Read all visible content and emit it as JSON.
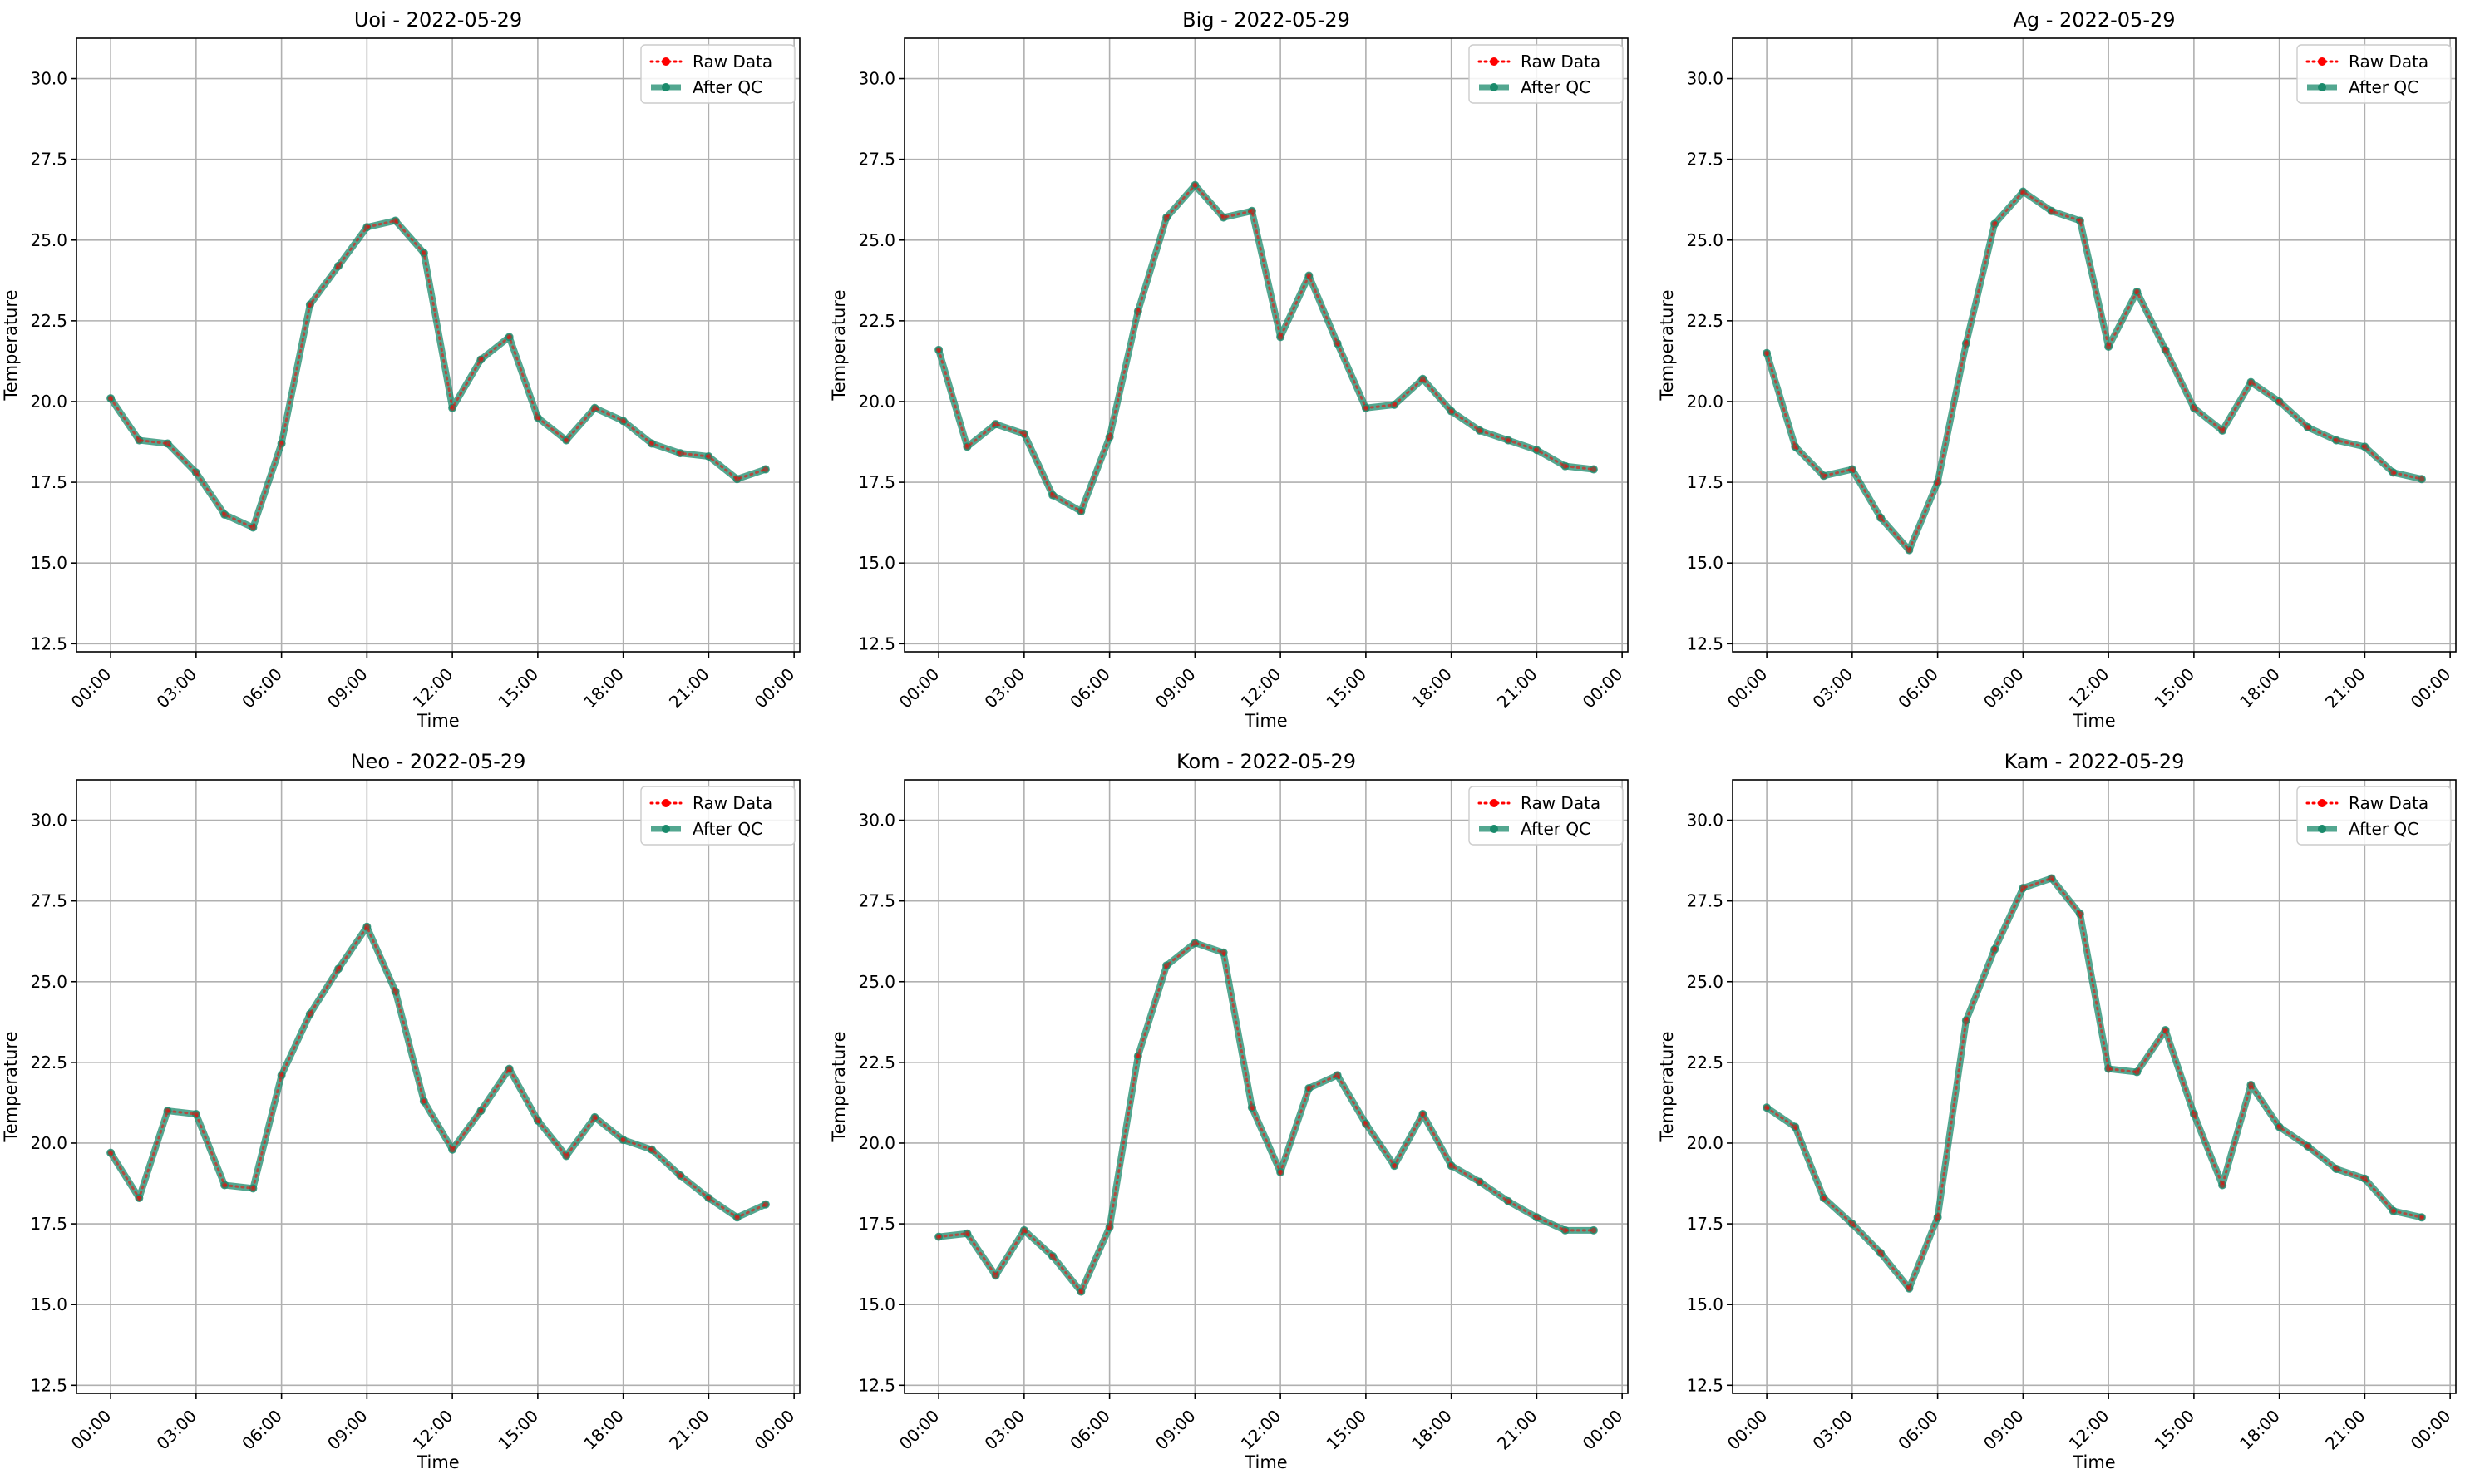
{
  "figure": {
    "background": "#ffffff"
  },
  "colors": {
    "raw": "#ff0000",
    "qc": "#1a8a6b",
    "grid": "#b0b0b0",
    "axis": "#000000"
  },
  "chart_data": [
    {
      "type": "line",
      "title": "Uoi - 2022-05-29",
      "xlabel": "Time",
      "ylabel": "Temperature",
      "xlim_hours": [
        -1.2,
        24.2
      ],
      "ylim": [
        12.25,
        31.25
      ],
      "x_ticks": [
        0,
        3,
        6,
        9,
        12,
        15,
        18,
        21,
        24
      ],
      "x_tick_labels": [
        "00:00",
        "03:00",
        "06:00",
        "09:00",
        "12:00",
        "15:00",
        "18:00",
        "21:00",
        "00:00"
      ],
      "y_ticks": [
        12.5,
        15.0,
        17.5,
        20.0,
        22.5,
        25.0,
        27.5,
        30.0
      ],
      "y_tick_labels": [
        "12.5",
        "15.0",
        "17.5",
        "20.0",
        "22.5",
        "25.0",
        "27.5",
        "30.0"
      ],
      "grid": true,
      "legend_position": "top-right",
      "x": [
        "00:00",
        "01:00",
        "02:00",
        "03:00",
        "04:00",
        "05:00",
        "06:00",
        "07:00",
        "08:00",
        "09:00",
        "10:00",
        "11:00",
        "12:00",
        "13:00",
        "14:00",
        "15:00",
        "16:00",
        "17:00",
        "18:00",
        "19:00",
        "20:00",
        "21:00",
        "22:00",
        "23:00"
      ],
      "series": [
        {
          "name": "Raw Data",
          "values": [
            20.1,
            18.8,
            18.7,
            17.8,
            16.5,
            16.1,
            18.7,
            23.0,
            24.2,
            25.4,
            25.6,
            24.6,
            19.8,
            21.3,
            22.0,
            19.5,
            18.8,
            19.8,
            19.4,
            18.7,
            18.4,
            18.3,
            17.6,
            17.9
          ]
        },
        {
          "name": "After QC",
          "values": [
            20.1,
            18.8,
            18.7,
            17.8,
            16.5,
            16.1,
            18.7,
            23.0,
            24.2,
            25.4,
            25.6,
            24.6,
            19.8,
            21.3,
            22.0,
            19.5,
            18.8,
            19.8,
            19.4,
            18.7,
            18.4,
            18.3,
            17.6,
            17.9
          ]
        }
      ]
    },
    {
      "type": "line",
      "title": "Big - 2022-05-29",
      "xlabel": "Time",
      "ylabel": "Temperature",
      "xlim_hours": [
        -1.2,
        24.2
      ],
      "ylim": [
        12.25,
        31.25
      ],
      "x_ticks": [
        0,
        3,
        6,
        9,
        12,
        15,
        18,
        21,
        24
      ],
      "x_tick_labels": [
        "00:00",
        "03:00",
        "06:00",
        "09:00",
        "12:00",
        "15:00",
        "18:00",
        "21:00",
        "00:00"
      ],
      "y_ticks": [
        12.5,
        15.0,
        17.5,
        20.0,
        22.5,
        25.0,
        27.5,
        30.0
      ],
      "y_tick_labels": [
        "12.5",
        "15.0",
        "17.5",
        "20.0",
        "22.5",
        "25.0",
        "27.5",
        "30.0"
      ],
      "grid": true,
      "legend_position": "top-right",
      "x": [
        "00:00",
        "01:00",
        "02:00",
        "03:00",
        "04:00",
        "05:00",
        "06:00",
        "07:00",
        "08:00",
        "09:00",
        "10:00",
        "11:00",
        "12:00",
        "13:00",
        "14:00",
        "15:00",
        "16:00",
        "17:00",
        "18:00",
        "19:00",
        "20:00",
        "21:00",
        "22:00",
        "23:00"
      ],
      "series": [
        {
          "name": "Raw Data",
          "values": [
            21.6,
            18.6,
            19.3,
            19.0,
            17.1,
            16.6,
            18.9,
            22.8,
            25.7,
            26.7,
            25.7,
            25.9,
            22.0,
            23.9,
            21.8,
            19.8,
            19.9,
            20.7,
            19.7,
            19.1,
            18.8,
            18.5,
            18.0,
            17.9
          ]
        },
        {
          "name": "After QC",
          "values": [
            21.6,
            18.6,
            19.3,
            19.0,
            17.1,
            16.6,
            18.9,
            22.8,
            25.7,
            26.7,
            25.7,
            25.9,
            22.0,
            23.9,
            21.8,
            19.8,
            19.9,
            20.7,
            19.7,
            19.1,
            18.8,
            18.5,
            18.0,
            17.9
          ]
        }
      ]
    },
    {
      "type": "line",
      "title": "Ag - 2022-05-29",
      "xlabel": "Time",
      "ylabel": "Temperature",
      "xlim_hours": [
        -1.2,
        24.2
      ],
      "ylim": [
        12.25,
        31.25
      ],
      "x_ticks": [
        0,
        3,
        6,
        9,
        12,
        15,
        18,
        21,
        24
      ],
      "x_tick_labels": [
        "00:00",
        "03:00",
        "06:00",
        "09:00",
        "12:00",
        "15:00",
        "18:00",
        "21:00",
        "00:00"
      ],
      "y_ticks": [
        12.5,
        15.0,
        17.5,
        20.0,
        22.5,
        25.0,
        27.5,
        30.0
      ],
      "y_tick_labels": [
        "12.5",
        "15.0",
        "17.5",
        "20.0",
        "22.5",
        "25.0",
        "27.5",
        "30.0"
      ],
      "grid": true,
      "legend_position": "top-right",
      "x": [
        "00:00",
        "01:00",
        "02:00",
        "03:00",
        "04:00",
        "05:00",
        "06:00",
        "07:00",
        "08:00",
        "09:00",
        "10:00",
        "11:00",
        "12:00",
        "13:00",
        "14:00",
        "15:00",
        "16:00",
        "17:00",
        "18:00",
        "19:00",
        "20:00",
        "21:00",
        "22:00",
        "23:00"
      ],
      "series": [
        {
          "name": "Raw Data",
          "values": [
            21.5,
            18.6,
            17.7,
            17.9,
            16.4,
            15.4,
            17.5,
            21.8,
            25.5,
            26.5,
            25.9,
            25.6,
            21.7,
            23.4,
            21.6,
            19.8,
            19.1,
            20.6,
            20.0,
            19.2,
            18.8,
            18.6,
            17.8,
            17.6
          ]
        },
        {
          "name": "After QC",
          "values": [
            21.5,
            18.6,
            17.7,
            17.9,
            16.4,
            15.4,
            17.5,
            21.8,
            25.5,
            26.5,
            25.9,
            25.6,
            21.7,
            23.4,
            21.6,
            19.8,
            19.1,
            20.6,
            20.0,
            19.2,
            18.8,
            18.6,
            17.8,
            17.6
          ]
        }
      ]
    },
    {
      "type": "line",
      "title": "Neo - 2022-05-29",
      "xlabel": "Time",
      "ylabel": "Temperature",
      "xlim_hours": [
        -1.2,
        24.2
      ],
      "ylim": [
        12.25,
        31.25
      ],
      "x_ticks": [
        0,
        3,
        6,
        9,
        12,
        15,
        18,
        21,
        24
      ],
      "x_tick_labels": [
        "00:00",
        "03:00",
        "06:00",
        "09:00",
        "12:00",
        "15:00",
        "18:00",
        "21:00",
        "00:00"
      ],
      "y_ticks": [
        12.5,
        15.0,
        17.5,
        20.0,
        22.5,
        25.0,
        27.5,
        30.0
      ],
      "y_tick_labels": [
        "12.5",
        "15.0",
        "17.5",
        "20.0",
        "22.5",
        "25.0",
        "27.5",
        "30.0"
      ],
      "grid": true,
      "legend_position": "top-right",
      "x": [
        "00:00",
        "01:00",
        "02:00",
        "03:00",
        "04:00",
        "05:00",
        "06:00",
        "07:00",
        "08:00",
        "09:00",
        "10:00",
        "11:00",
        "12:00",
        "13:00",
        "14:00",
        "15:00",
        "16:00",
        "17:00",
        "18:00",
        "19:00",
        "20:00",
        "21:00",
        "22:00",
        "23:00"
      ],
      "series": [
        {
          "name": "Raw Data",
          "values": [
            19.7,
            18.3,
            21.0,
            20.9,
            18.7,
            18.6,
            22.1,
            24.0,
            25.4,
            26.7,
            24.7,
            21.3,
            19.8,
            21.0,
            22.3,
            20.7,
            19.6,
            20.8,
            20.1,
            19.8,
            19.0,
            18.3,
            17.7,
            18.1
          ]
        },
        {
          "name": "After QC",
          "values": [
            19.7,
            18.3,
            21.0,
            20.9,
            18.7,
            18.6,
            22.1,
            24.0,
            25.4,
            26.7,
            24.7,
            21.3,
            19.8,
            21.0,
            22.3,
            20.7,
            19.6,
            20.8,
            20.1,
            19.8,
            19.0,
            18.3,
            17.7,
            18.1
          ]
        }
      ]
    },
    {
      "type": "line",
      "title": "Kom - 2022-05-29",
      "xlabel": "Time",
      "ylabel": "Temperature",
      "xlim_hours": [
        -1.2,
        24.2
      ],
      "ylim": [
        12.25,
        31.25
      ],
      "x_ticks": [
        0,
        3,
        6,
        9,
        12,
        15,
        18,
        21,
        24
      ],
      "x_tick_labels": [
        "00:00",
        "03:00",
        "06:00",
        "09:00",
        "12:00",
        "15:00",
        "18:00",
        "21:00",
        "00:00"
      ],
      "y_ticks": [
        12.5,
        15.0,
        17.5,
        20.0,
        22.5,
        25.0,
        27.5,
        30.0
      ],
      "y_tick_labels": [
        "12.5",
        "15.0",
        "17.5",
        "20.0",
        "22.5",
        "25.0",
        "27.5",
        "30.0"
      ],
      "grid": true,
      "legend_position": "top-right",
      "x": [
        "00:00",
        "01:00",
        "02:00",
        "03:00",
        "04:00",
        "05:00",
        "06:00",
        "07:00",
        "08:00",
        "09:00",
        "10:00",
        "11:00",
        "12:00",
        "13:00",
        "14:00",
        "15:00",
        "16:00",
        "17:00",
        "18:00",
        "19:00",
        "20:00",
        "21:00",
        "22:00",
        "23:00"
      ],
      "series": [
        {
          "name": "Raw Data",
          "values": [
            17.1,
            17.2,
            15.9,
            17.3,
            16.5,
            15.4,
            17.4,
            22.7,
            25.5,
            26.2,
            25.9,
            21.1,
            19.1,
            21.7,
            22.1,
            20.6,
            19.3,
            20.9,
            19.3,
            18.8,
            18.2,
            17.7,
            17.3,
            17.3
          ]
        },
        {
          "name": "After QC",
          "values": [
            17.1,
            17.2,
            15.9,
            17.3,
            16.5,
            15.4,
            17.4,
            22.7,
            25.5,
            26.2,
            25.9,
            21.1,
            19.1,
            21.7,
            22.1,
            20.6,
            19.3,
            20.9,
            19.3,
            18.8,
            18.2,
            17.7,
            17.3,
            17.3
          ]
        }
      ]
    },
    {
      "type": "line",
      "title": "Kam - 2022-05-29",
      "xlabel": "Time",
      "ylabel": "Temperature",
      "xlim_hours": [
        -1.2,
        24.2
      ],
      "ylim": [
        12.25,
        31.25
      ],
      "x_ticks": [
        0,
        3,
        6,
        9,
        12,
        15,
        18,
        21,
        24
      ],
      "x_tick_labels": [
        "00:00",
        "03:00",
        "06:00",
        "09:00",
        "12:00",
        "15:00",
        "18:00",
        "21:00",
        "00:00"
      ],
      "y_ticks": [
        12.5,
        15.0,
        17.5,
        20.0,
        22.5,
        25.0,
        27.5,
        30.0
      ],
      "y_tick_labels": [
        "12.5",
        "15.0",
        "17.5",
        "20.0",
        "22.5",
        "25.0",
        "27.5",
        "30.0"
      ],
      "grid": true,
      "legend_position": "top-right",
      "x": [
        "00:00",
        "01:00",
        "02:00",
        "03:00",
        "04:00",
        "05:00",
        "06:00",
        "07:00",
        "08:00",
        "09:00",
        "10:00",
        "11:00",
        "12:00",
        "13:00",
        "14:00",
        "15:00",
        "16:00",
        "17:00",
        "18:00",
        "19:00",
        "20:00",
        "21:00",
        "22:00",
        "23:00"
      ],
      "series": [
        {
          "name": "Raw Data",
          "values": [
            21.1,
            20.5,
            18.3,
            17.5,
            16.6,
            15.5,
            17.7,
            23.8,
            26.0,
            27.9,
            28.2,
            27.1,
            22.3,
            22.2,
            23.5,
            20.9,
            18.7,
            21.8,
            20.5,
            19.9,
            19.2,
            18.9,
            17.9,
            17.7
          ]
        },
        {
          "name": "After QC",
          "values": [
            21.1,
            20.5,
            18.3,
            17.5,
            16.6,
            15.5,
            17.7,
            23.8,
            26.0,
            27.9,
            28.2,
            27.1,
            22.3,
            22.2,
            23.5,
            20.9,
            18.7,
            21.8,
            20.5,
            19.9,
            19.2,
            18.9,
            17.9,
            17.7
          ]
        }
      ]
    }
  ]
}
